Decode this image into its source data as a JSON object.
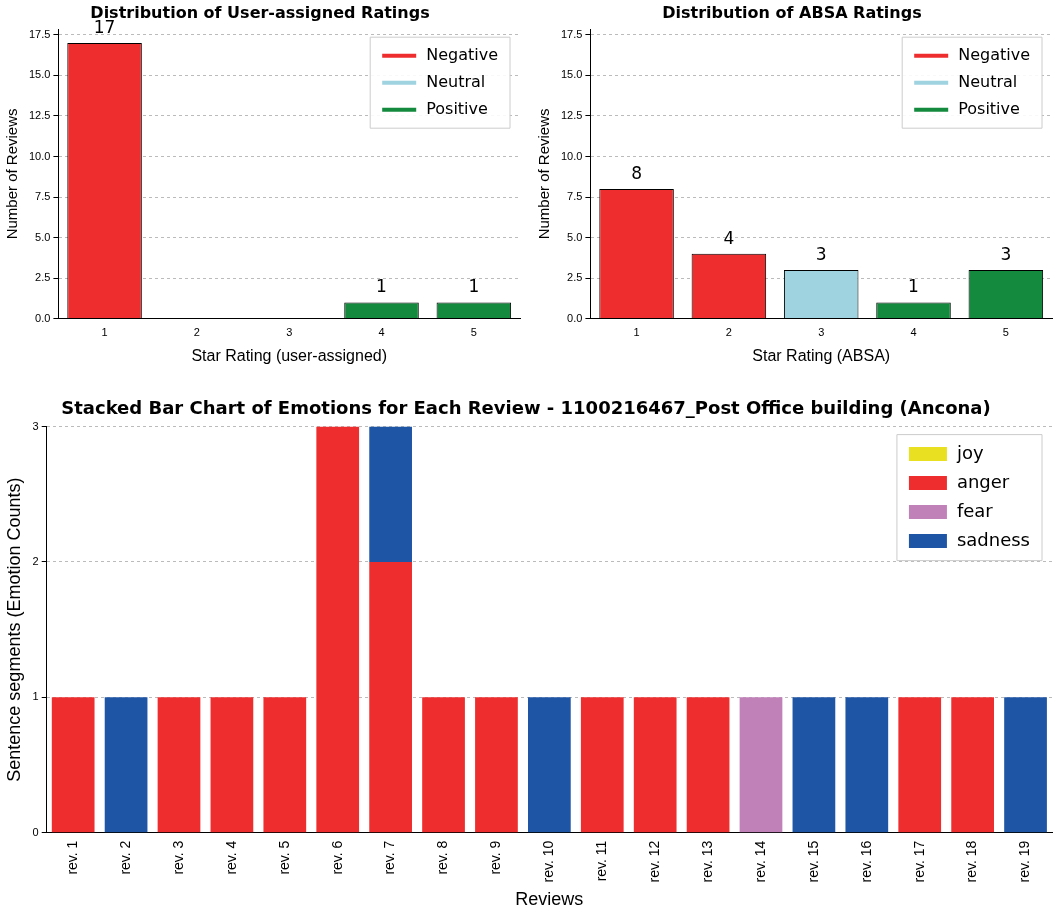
{
  "chart_data": [
    {
      "type": "bar",
      "title": "Distribution of User-assigned Ratings",
      "xlabel": "Star Rating (user-assigned)",
      "ylabel": "Number of Reviews",
      "categories": [
        "1",
        "2",
        "3",
        "4",
        "5"
      ],
      "stacked": true,
      "series": [
        {
          "name": "Negative",
          "color": "#ee2e2e",
          "values": [
            17,
            0,
            null,
            null,
            null
          ],
          "value_labels": [
            "17",
            null,
            null,
            null,
            null
          ]
        },
        {
          "name": "Neutral",
          "color": "#9fd3e0",
          "values": [
            null,
            null,
            0,
            null,
            null
          ],
          "value_labels": [
            null,
            null,
            null,
            null,
            null
          ]
        },
        {
          "name": "Positive",
          "color": "#138a3d",
          "values": [
            null,
            null,
            null,
            1,
            1
          ],
          "value_labels": [
            null,
            null,
            null,
            "1",
            "1"
          ]
        }
      ],
      "ylim": [
        0,
        17.85
      ],
      "yticks": [
        {
          "value": 0,
          "label": "0.0"
        },
        2.5,
        {
          "value": 5,
          "label": "5.0"
        },
        7.5,
        {
          "value": 10,
          "label": "10.0"
        },
        12.5,
        {
          "value": 15,
          "label": "15.0"
        },
        17.5
      ],
      "grid": "y",
      "legend": "top right"
    },
    {
      "type": "bar",
      "title": "Distribution of ABSA Ratings",
      "xlabel": "Star Rating (ABSA)",
      "ylabel": "Number of Reviews",
      "categories": [
        "1",
        "2",
        "3",
        "4",
        "5"
      ],
      "stacked": true,
      "series": [
        {
          "name": "Negative",
          "color": "#ee2e2e",
          "values": [
            8,
            4,
            null,
            null,
            null
          ],
          "value_labels": [
            "8",
            "4",
            null,
            null,
            null
          ]
        },
        {
          "name": "Neutral",
          "color": "#9fd3e0",
          "values": [
            null,
            null,
            3,
            null,
            null
          ],
          "value_labels": [
            null,
            null,
            "3",
            null,
            null
          ]
        },
        {
          "name": "Positive",
          "color": "#138a3d",
          "values": [
            null,
            null,
            null,
            1,
            3
          ],
          "value_labels": [
            null,
            null,
            null,
            "1",
            "3"
          ]
        }
      ],
      "ylim": [
        0,
        17.85
      ],
      "yticks": [
        {
          "value": 0,
          "label": "0.0"
        },
        2.5,
        {
          "value": 5,
          "label": "5.0"
        },
        7.5,
        {
          "value": 10,
          "label": "10.0"
        },
        12.5,
        {
          "value": 15,
          "label": "15.0"
        },
        17.5
      ],
      "grid": "y",
      "legend": "top right"
    },
    {
      "type": "bar",
      "title": "Stacked Bar Chart of Emotions for Each Review - 1100216467_Post Office building (Ancona)",
      "xlabel": "Reviews",
      "ylabel": "Sentence segments (Emotion Counts)",
      "categories": [
        "rev. 1",
        "rev. 2",
        "rev. 3",
        "rev. 4",
        "rev. 5",
        "rev. 6",
        "rev. 7",
        "rev. 8",
        "rev. 9",
        "rev. 10",
        "rev. 11",
        "rev. 12",
        "rev. 13",
        "rev. 14",
        "rev. 15",
        "rev. 16",
        "rev. 17",
        "rev. 18",
        "rev. 19"
      ],
      "stacked": true,
      "series": [
        {
          "name": "joy",
          "color": "#e8e020",
          "values": [
            0,
            0,
            0,
            0,
            0,
            0,
            0,
            0,
            0,
            0,
            0,
            0,
            0,
            0,
            0,
            0,
            0,
            0,
            0
          ]
        },
        {
          "name": "anger",
          "color": "#ee2e2e",
          "values": [
            1,
            0,
            1,
            1,
            1,
            3,
            2,
            1,
            1,
            0,
            1,
            1,
            1,
            0,
            0,
            0,
            1,
            1,
            0
          ]
        },
        {
          "name": "fear",
          "color": "#c080b8",
          "values": [
            0,
            0,
            0,
            0,
            0,
            0,
            0,
            0,
            0,
            0,
            0,
            0,
            0,
            1,
            0,
            0,
            0,
            0,
            0
          ]
        },
        {
          "name": "sadness",
          "color": "#1f55a5",
          "values": [
            0,
            1,
            0,
            0,
            0,
            0,
            1,
            0,
            0,
            1,
            0,
            0,
            0,
            0,
            1,
            1,
            0,
            0,
            1
          ]
        }
      ],
      "ylim": [
        0,
        3
      ],
      "yticks": [
        0,
        1,
        2,
        3
      ],
      "grid": "y",
      "legend": "top right"
    }
  ]
}
